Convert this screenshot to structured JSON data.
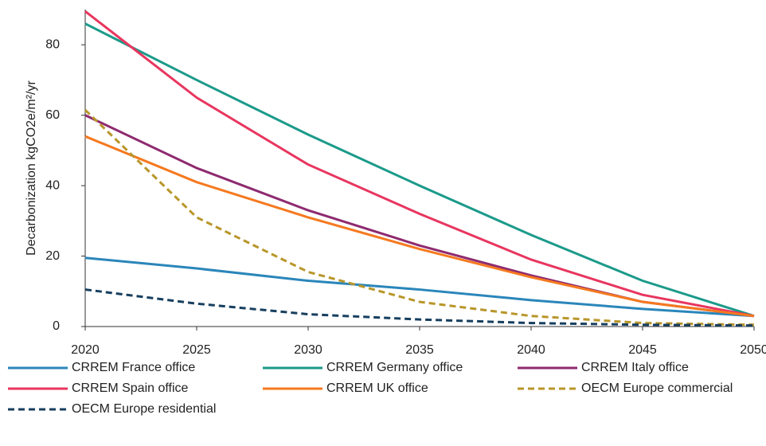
{
  "chart_data": {
    "type": "line",
    "y_label": "Decarbonization kgCO2e/m²/yr",
    "x": [
      2020,
      2025,
      2030,
      2035,
      2040,
      2045,
      2050
    ],
    "xlim": [
      2020,
      2050
    ],
    "xticks": [
      2020,
      2025,
      2030,
      2035,
      2040,
      2045,
      2050
    ],
    "ylim": [
      0,
      90
    ],
    "yticks": [
      0,
      20,
      40,
      60,
      80
    ],
    "grid": false,
    "legend": "bottom",
    "series": [
      {
        "name": "CRREM France office",
        "color": "#2a86ba",
        "dashed": false,
        "values": [
          19.5,
          16.5,
          13,
          10.5,
          7.5,
          5,
          3
        ]
      },
      {
        "name": "CRREM Germany office",
        "color": "#1b9a8a",
        "dashed": false,
        "values": [
          86,
          70,
          54.5,
          40,
          26,
          13,
          3
        ]
      },
      {
        "name": "CRREM Italy office",
        "color": "#8e2a6f",
        "dashed": false,
        "values": [
          60,
          45,
          33,
          23,
          14.5,
          7,
          3
        ]
      },
      {
        "name": "CRREM Spain office",
        "color": "#e8365f",
        "dashed": false,
        "values": [
          89.5,
          65,
          46,
          32,
          19,
          9,
          3
        ]
      },
      {
        "name": "CRREM UK office",
        "color": "#f5791f",
        "dashed": false,
        "values": [
          54,
          41,
          31,
          22,
          14,
          7,
          3
        ]
      },
      {
        "name": "OECM Europe commercial",
        "color": "#b8962a",
        "dashed": true,
        "values": [
          61.5,
          31,
          15.5,
          7,
          3,
          1,
          0.5
        ]
      },
      {
        "name": "OECM Europe residential",
        "color": "#173f5f",
        "dashed": true,
        "values": [
          10.5,
          6.5,
          3.5,
          2,
          1,
          0.5,
          0.3
        ]
      }
    ]
  }
}
